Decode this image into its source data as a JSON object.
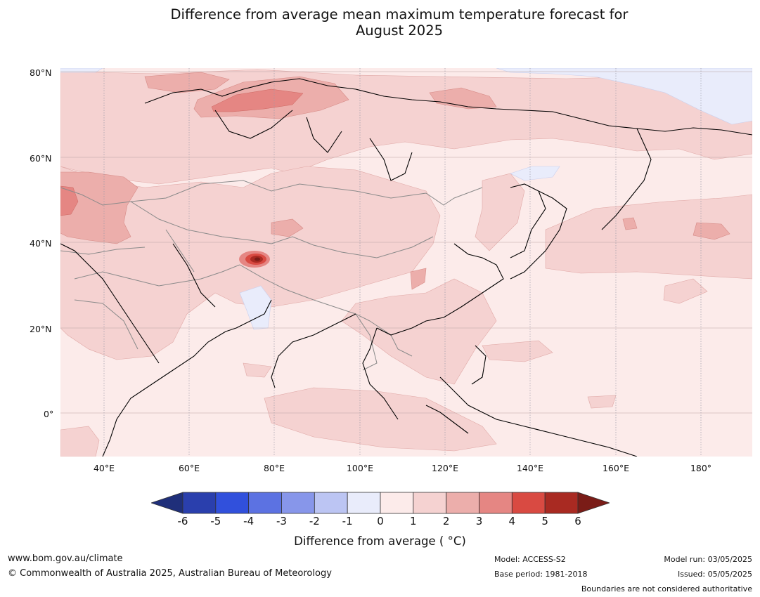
{
  "title": {
    "line1": "Difference from average mean maximum temperature forecast for",
    "line2": "August 2025"
  },
  "map": {
    "lat_labels": [
      "80°N",
      "60°N",
      "40°N",
      "20°N",
      "0°"
    ],
    "lon_labels": [
      "40°E",
      "60°E",
      "80°E",
      "100°E",
      "120°E",
      "140°E",
      "160°E",
      "180°"
    ]
  },
  "colorbar": {
    "title": "Difference from average ( °C)",
    "tick_labels": [
      "-6",
      "-5",
      "-4",
      "-3",
      "-2",
      "-1",
      "0",
      "1",
      "2",
      "3",
      "4",
      "5",
      "6"
    ],
    "colors": [
      "#1f2f7a",
      "#2a3fad",
      "#3150dc",
      "#5c72e2",
      "#8796ea",
      "#bcc5f3",
      "#e9ecfb",
      "#fcebea",
      "#f5d2d1",
      "#ecaeab",
      "#e58683",
      "#d94a42",
      "#a92a22",
      "#7a1c17"
    ]
  },
  "footer": {
    "url": "www.bom.gov.au/climate",
    "copyright": "© Commonwealth of Australia 2025, Australian Bureau of Meteorology",
    "model": "Model: ACCESS-S2",
    "base_period": "Base period: 1981-2018",
    "model_run": "Model run: 03/05/2025",
    "issued": "Issued: 05/05/2025",
    "disclaimer": "Boundaries are not considered authoritative"
  }
}
